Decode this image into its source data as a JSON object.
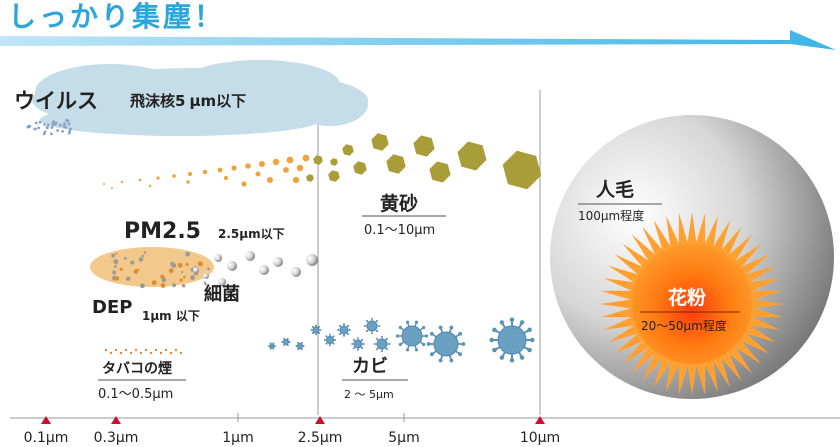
{
  "header": {
    "title": "しっかり集塵！"
  },
  "labels": {
    "virus": "ウイルス",
    "droplet_nuclei": "飛沫核5",
    "droplet_nuclei_unit": "μm以下",
    "yellow_sand": "黄砂",
    "yellow_sand_range": "0.1〜10μm",
    "pm25": "PM2.5",
    "pm25_note": "2.5μm以下",
    "bacteria": "細菌",
    "dep": "DEP",
    "dep_note": "1μm 以下",
    "tobacco": "タバコの煙",
    "tobacco_range": "0.1〜0.5μm",
    "mold": "カビ",
    "mold_range": "2 〜 5μm",
    "hair": "人毛",
    "hair_range": "100μm程度",
    "pollen": "花粉",
    "pollen_range": "20〜50μm程度"
  },
  "axis": {
    "ticks": [
      {
        "label": "0.1μm",
        "marker": "triangle"
      },
      {
        "label": "0.3μm",
        "marker": "triangle"
      },
      {
        "label": "1μm",
        "marker": "tick"
      },
      {
        "label": "2.5μm",
        "marker": "triangle"
      },
      {
        "label": "5μm",
        "marker": "tick"
      },
      {
        "label": "10μm",
        "marker": "triangle"
      }
    ]
  },
  "colors": {
    "arrow": "#3cb4e5",
    "header_text": "#2aa6dd",
    "cloud": "#c5dde8",
    "sand": "#a99d3a",
    "orange_dot": "#f0a23c",
    "pm25_blob": "#f3c98b",
    "mold": "#5b93b6",
    "pollen": "#ff7a10",
    "sphere_dark": "#6f6f6f",
    "tick_marker": "#c8102e",
    "text": "#222222"
  }
}
